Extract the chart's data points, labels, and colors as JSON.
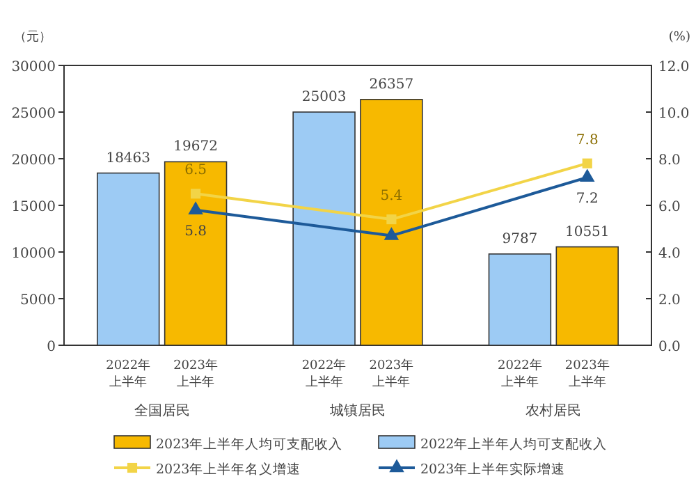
{
  "chart_data": {
    "type": "bar",
    "categories": [
      "全国居民",
      "城镇居民",
      "农村居民"
    ],
    "series": [
      {
        "name": "2022年上半年人均可支配收入",
        "color": "#9dcbf4",
        "values": [
          18463,
          25003,
          9787
        ],
        "value_labels": [
          "18463",
          "25003",
          "9787"
        ]
      },
      {
        "name": "2023年上半年人均可支配收入",
        "color": "#f7b900",
        "values": [
          19672,
          26357,
          10551
        ],
        "value_labels": [
          "19672",
          "26357",
          "10551"
        ]
      },
      {
        "name": "2023年上半年名义增速",
        "type": "line",
        "axis": "y2",
        "color": "#f2d447",
        "marker": "square",
        "values": [
          6.5,
          5.4,
          7.8
        ],
        "value_labels": [
          "6.5",
          "5.4",
          "7.8"
        ]
      },
      {
        "name": "2023年上半年实际增速",
        "type": "line",
        "axis": "y2",
        "color": "#1d5a99",
        "marker": "triangle",
        "values": [
          5.8,
          4.7,
          7.2
        ],
        "value_labels": [
          "5.8",
          null,
          "7.2"
        ]
      }
    ],
    "ylabel": "（元）",
    "y2label": "(%)",
    "ylim": [
      0,
      30000
    ],
    "yticks": [
      0,
      5000,
      10000,
      15000,
      20000,
      25000,
      30000
    ],
    "y2lim": [
      0,
      12
    ],
    "y2ticks": [
      {
        "value": 0,
        "label": "0.0"
      },
      {
        "value": 2,
        "label": "2.0"
      },
      {
        "value": 4,
        "label": "4.0"
      },
      {
        "value": 6,
        "label": "6.0"
      },
      {
        "value": 8,
        "label": "8.0"
      },
      {
        "value": 10,
        "label": "10.0"
      },
      {
        "value": 12,
        "label": "12.0"
      }
    ],
    "annotations": [
      "2022年上半年",
      "2023年上半年"
    ],
    "grid": false,
    "legend": "bottom"
  }
}
